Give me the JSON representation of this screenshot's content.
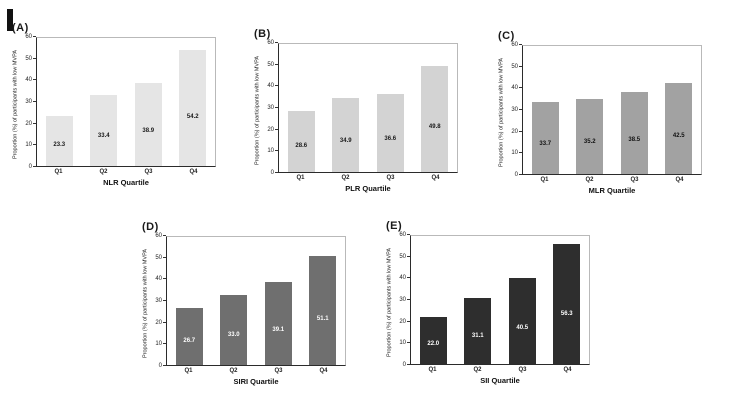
{
  "figure": {
    "y_axis_label": "Proportion (%) of participants with low MVPA",
    "y_ticks": [
      0,
      10,
      20,
      30,
      40,
      50,
      60
    ],
    "y_max": 60,
    "categories": [
      "Q1",
      "Q2",
      "Q3",
      "Q4"
    ]
  },
  "chart_data": [
    {
      "type": "bar",
      "panel": "(A)",
      "categories": [
        "Q1",
        "Q2",
        "Q3",
        "Q4"
      ],
      "values": [
        23.3,
        33.4,
        38.9,
        54.2
      ],
      "xlabel": "NLR Quartile",
      "ylabel": "Proportion (%) of participants with low MVPA",
      "ylim": [
        0,
        60
      ],
      "grid": false,
      "bar_color": "#e5e5e5",
      "value_label_color": "#1a1a1a"
    },
    {
      "type": "bar",
      "panel": "(B)",
      "categories": [
        "Q1",
        "Q2",
        "Q3",
        "Q4"
      ],
      "values": [
        28.6,
        34.9,
        36.6,
        49.8
      ],
      "xlabel": "PLR Quartile",
      "ylabel": "Proportion (%) of participants with low MVPA",
      "ylim": [
        0,
        60
      ],
      "grid": false,
      "bar_color": "#d3d3d3",
      "value_label_color": "#1a1a1a"
    },
    {
      "type": "bar",
      "panel": "(C)",
      "categories": [
        "Q1",
        "Q2",
        "Q3",
        "Q4"
      ],
      "values": [
        33.7,
        35.2,
        38.5,
        42.5
      ],
      "xlabel": "MLR Quartile",
      "ylabel": "Proportion (%) of participants with low MVPA",
      "ylim": [
        0,
        60
      ],
      "grid": false,
      "bar_color": "#a2a2a2",
      "value_label_color": "#111111"
    },
    {
      "type": "bar",
      "panel": "(D)",
      "categories": [
        "Q1",
        "Q2",
        "Q3",
        "Q4"
      ],
      "values": [
        26.7,
        33.0,
        39.1,
        51.1
      ],
      "xlabel": "SIRI Quartile",
      "ylabel": "Proportion (%) of participants with low MVPA",
      "ylim": [
        0,
        60
      ],
      "grid": false,
      "bar_color": "#6f6f6f",
      "value_label_color": "#ffffff"
    },
    {
      "type": "bar",
      "panel": "(E)",
      "categories": [
        "Q1",
        "Q2",
        "Q3",
        "Q4"
      ],
      "values": [
        22.0,
        31.1,
        40.5,
        56.3
      ],
      "xlabel": "SII Quartile",
      "ylabel": "Proportion (%) of participants with low MVPA",
      "ylim": [
        0,
        60
      ],
      "grid": false,
      "bar_color": "#2e2e2e",
      "value_label_color": "#ffffff"
    }
  ]
}
